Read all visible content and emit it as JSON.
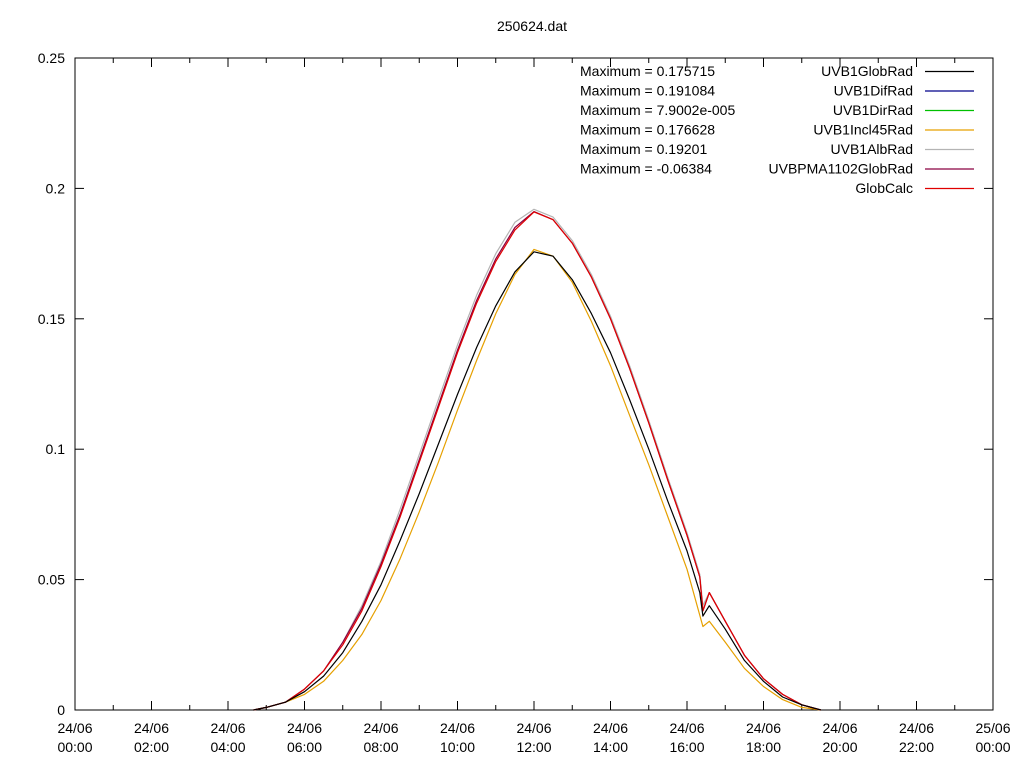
{
  "chart_data": {
    "type": "line",
    "title": "250624.dat",
    "xlabel": "",
    "ylabel": "",
    "xlim": [
      "2024-06-24 00:00",
      "2024-06-25 00:00"
    ],
    "ylim": [
      0,
      0.25
    ],
    "y_ticks": [
      {
        "value": 0,
        "label": "0"
      },
      {
        "value": 0.05,
        "label": "0.05"
      },
      {
        "value": 0.1,
        "label": "0.1"
      },
      {
        "value": 0.15,
        "label": "0.15"
      },
      {
        "value": 0.2,
        "label": "0.2"
      },
      {
        "value": 0.25,
        "label": "0.25"
      }
    ],
    "x_ticks": [
      {
        "time": "2024-06-24 00:00",
        "line1": "24/06",
        "line2": "00:00"
      },
      {
        "time": "2024-06-24 02:00",
        "line1": "24/06",
        "line2": "02:00"
      },
      {
        "time": "2024-06-24 04:00",
        "line1": "24/06",
        "line2": "04:00"
      },
      {
        "time": "2024-06-24 06:00",
        "line1": "24/06",
        "line2": "06:00"
      },
      {
        "time": "2024-06-24 08:00",
        "line1": "24/06",
        "line2": "08:00"
      },
      {
        "time": "2024-06-24 10:00",
        "line1": "24/06",
        "line2": "10:00"
      },
      {
        "time": "2024-06-24 12:00",
        "line1": "24/06",
        "line2": "12:00"
      },
      {
        "time": "2024-06-24 14:00",
        "line1": "24/06",
        "line2": "14:00"
      },
      {
        "time": "2024-06-24 16:00",
        "line1": "24/06",
        "line2": "16:00"
      },
      {
        "time": "2024-06-24 18:00",
        "line1": "24/06",
        "line2": "18:00"
      },
      {
        "time": "2024-06-24 20:00",
        "line1": "24/06",
        "line2": "20:00"
      },
      {
        "time": "2024-06-24 22:00",
        "line1": "24/06",
        "line2": "22:00"
      },
      {
        "time": "2024-06-25 00:00",
        "line1": "25/06",
        "line2": "00:00"
      }
    ],
    "grid": false,
    "legend_position": "top-right",
    "annotations": [
      "Maximum = 0.175715",
      "Maximum = 0.191084",
      "Maximum = 7.9002e-005",
      "Maximum = 0.176628",
      "Maximum = 0.19201",
      "Maximum = -0.06384"
    ],
    "series": [
      {
        "name": "UVB1GlobRad",
        "color": "#000000",
        "points": [
          [
            "2024-06-24 04:40",
            0
          ],
          [
            "2024-06-24 05:00",
            0.001
          ],
          [
            "2024-06-24 05:30",
            0.003
          ],
          [
            "2024-06-24 06:00",
            0.007
          ],
          [
            "2024-06-24 06:30",
            0.013
          ],
          [
            "2024-06-24 07:00",
            0.022
          ],
          [
            "2024-06-24 07:30",
            0.034
          ],
          [
            "2024-06-24 08:00",
            0.048
          ],
          [
            "2024-06-24 08:30",
            0.065
          ],
          [
            "2024-06-24 09:00",
            0.083
          ],
          [
            "2024-06-24 09:30",
            0.102
          ],
          [
            "2024-06-24 10:00",
            0.121
          ],
          [
            "2024-06-24 10:30",
            0.139
          ],
          [
            "2024-06-24 11:00",
            0.155
          ],
          [
            "2024-06-24 11:30",
            0.168
          ],
          [
            "2024-06-24 12:00",
            0.1757
          ],
          [
            "2024-06-24 12:30",
            0.174
          ],
          [
            "2024-06-24 13:00",
            0.165
          ],
          [
            "2024-06-24 13:30",
            0.152
          ],
          [
            "2024-06-24 14:00",
            0.137
          ],
          [
            "2024-06-24 14:30",
            0.119
          ],
          [
            "2024-06-24 15:00",
            0.1
          ],
          [
            "2024-06-24 15:30",
            0.08
          ],
          [
            "2024-06-24 16:00",
            0.061
          ],
          [
            "2024-06-24 16:20",
            0.045
          ],
          [
            "2024-06-24 16:25",
            0.036
          ],
          [
            "2024-06-24 16:35",
            0.04
          ],
          [
            "2024-06-24 17:00",
            0.031
          ],
          [
            "2024-06-24 17:30",
            0.019
          ],
          [
            "2024-06-24 18:00",
            0.011
          ],
          [
            "2024-06-24 18:30",
            0.005
          ],
          [
            "2024-06-24 19:00",
            0.002
          ],
          [
            "2024-06-24 19:30",
            0
          ]
        ]
      },
      {
        "name": "UVB1DifRad",
        "color": "#00008b",
        "points": []
      },
      {
        "name": "UVB1DirRad",
        "color": "#00c000",
        "points": []
      },
      {
        "name": "UVB1Incl45Rad",
        "color": "#e6a000",
        "points": [
          [
            "2024-06-24 04:40",
            0
          ],
          [
            "2024-06-24 05:00",
            0.001
          ],
          [
            "2024-06-24 05:30",
            0.003
          ],
          [
            "2024-06-24 06:00",
            0.006
          ],
          [
            "2024-06-24 06:30",
            0.011
          ],
          [
            "2024-06-24 07:00",
            0.019
          ],
          [
            "2024-06-24 07:30",
            0.029
          ],
          [
            "2024-06-24 08:00",
            0.042
          ],
          [
            "2024-06-24 08:30",
            0.058
          ],
          [
            "2024-06-24 09:00",
            0.076
          ],
          [
            "2024-06-24 09:30",
            0.095
          ],
          [
            "2024-06-24 10:00",
            0.115
          ],
          [
            "2024-06-24 10:30",
            0.134
          ],
          [
            "2024-06-24 11:00",
            0.152
          ],
          [
            "2024-06-24 11:30",
            0.167
          ],
          [
            "2024-06-24 12:00",
            0.1766
          ],
          [
            "2024-06-24 12:30",
            0.174
          ],
          [
            "2024-06-24 13:00",
            0.164
          ],
          [
            "2024-06-24 13:30",
            0.149
          ],
          [
            "2024-06-24 14:00",
            0.132
          ],
          [
            "2024-06-24 14:30",
            0.113
          ],
          [
            "2024-06-24 15:00",
            0.094
          ],
          [
            "2024-06-24 15:30",
            0.074
          ],
          [
            "2024-06-24 16:00",
            0.054
          ],
          [
            "2024-06-24 16:25",
            0.032
          ],
          [
            "2024-06-24 16:35",
            0.034
          ],
          [
            "2024-06-24 17:00",
            0.026
          ],
          [
            "2024-06-24 17:30",
            0.016
          ],
          [
            "2024-06-24 18:00",
            0.009
          ],
          [
            "2024-06-24 18:30",
            0.004
          ],
          [
            "2024-06-24 19:00",
            0.001
          ],
          [
            "2024-06-24 19:30",
            0
          ]
        ]
      },
      {
        "name": "UVB1AlbRad",
        "color": "#b4b4b4",
        "points": [
          [
            "2024-06-24 04:40",
            0
          ],
          [
            "2024-06-24 05:00",
            0.001
          ],
          [
            "2024-06-24 05:30",
            0.003
          ],
          [
            "2024-06-24 06:00",
            0.008
          ],
          [
            "2024-06-24 06:30",
            0.015
          ],
          [
            "2024-06-24 07:00",
            0.026
          ],
          [
            "2024-06-24 07:30",
            0.04
          ],
          [
            "2024-06-24 08:00",
            0.057
          ],
          [
            "2024-06-24 08:30",
            0.077
          ],
          [
            "2024-06-24 09:00",
            0.098
          ],
          [
            "2024-06-24 09:30",
            0.119
          ],
          [
            "2024-06-24 10:00",
            0.14
          ],
          [
            "2024-06-24 10:30",
            0.159
          ],
          [
            "2024-06-24 11:00",
            0.175
          ],
          [
            "2024-06-24 11:30",
            0.187
          ],
          [
            "2024-06-24 12:00",
            0.192
          ],
          [
            "2024-06-24 12:30",
            0.189
          ],
          [
            "2024-06-24 13:00",
            0.18
          ],
          [
            "2024-06-24 13:30",
            0.167
          ],
          [
            "2024-06-24 14:00",
            0.151
          ],
          [
            "2024-06-24 14:30",
            0.132
          ],
          [
            "2024-06-24 15:00",
            0.111
          ],
          [
            "2024-06-24 15:30",
            0.089
          ],
          [
            "2024-06-24 16:00",
            0.068
          ],
          [
            "2024-06-24 16:20",
            0.052
          ],
          [
            "2024-06-24 16:25",
            0.04
          ],
          [
            "2024-06-24 16:35",
            0.045
          ],
          [
            "2024-06-24 17:00",
            0.034
          ],
          [
            "2024-06-24 17:30",
            0.021
          ],
          [
            "2024-06-24 18:00",
            0.012
          ],
          [
            "2024-06-24 18:30",
            0.006
          ],
          [
            "2024-06-24 19:00",
            0.002
          ],
          [
            "2024-06-24 19:30",
            0
          ]
        ]
      },
      {
        "name": "UVBPMA1102GlobRad",
        "color": "#8b0040",
        "points": [
          [
            "2024-06-24 04:40",
            0
          ],
          [
            "2024-06-24 05:00",
            0.001
          ],
          [
            "2024-06-24 05:30",
            0.003
          ],
          [
            "2024-06-24 06:00",
            0.008
          ],
          [
            "2024-06-24 06:30",
            0.015
          ],
          [
            "2024-06-24 07:00",
            0.026
          ],
          [
            "2024-06-24 07:30",
            0.039
          ],
          [
            "2024-06-24 08:00",
            0.056
          ],
          [
            "2024-06-24 08:30",
            0.075
          ],
          [
            "2024-06-24 09:00",
            0.096
          ],
          [
            "2024-06-24 09:30",
            0.117
          ],
          [
            "2024-06-24 10:00",
            0.138
          ],
          [
            "2024-06-24 10:30",
            0.157
          ],
          [
            "2024-06-24 11:00",
            0.173
          ],
          [
            "2024-06-24 11:30",
            0.185
          ],
          [
            "2024-06-24 12:00",
            0.1911
          ],
          [
            "2024-06-24 12:30",
            0.188
          ],
          [
            "2024-06-24 13:00",
            0.179
          ],
          [
            "2024-06-24 13:30",
            0.166
          ],
          [
            "2024-06-24 14:00",
            0.15
          ],
          [
            "2024-06-24 14:30",
            0.131
          ],
          [
            "2024-06-24 15:00",
            0.11
          ],
          [
            "2024-06-24 15:30",
            0.088
          ],
          [
            "2024-06-24 16:00",
            0.067
          ],
          [
            "2024-06-24 16:20",
            0.051
          ],
          [
            "2024-06-24 16:25",
            0.038
          ],
          [
            "2024-06-24 16:35",
            0.045
          ],
          [
            "2024-06-24 17:00",
            0.034
          ],
          [
            "2024-06-24 17:30",
            0.021
          ],
          [
            "2024-06-24 18:00",
            0.012
          ],
          [
            "2024-06-24 18:30",
            0.006
          ],
          [
            "2024-06-24 19:00",
            0.002
          ],
          [
            "2024-06-24 19:30",
            0
          ]
        ]
      },
      {
        "name": "GlobCalc",
        "color": "#e00000",
        "points": [
          [
            "2024-06-24 04:40",
            0
          ],
          [
            "2024-06-24 05:00",
            0.001
          ],
          [
            "2024-06-24 05:30",
            0.003
          ],
          [
            "2024-06-24 06:00",
            0.008
          ],
          [
            "2024-06-24 06:30",
            0.015
          ],
          [
            "2024-06-24 07:00",
            0.025
          ],
          [
            "2024-06-24 07:30",
            0.038
          ],
          [
            "2024-06-24 08:00",
            0.055
          ],
          [
            "2024-06-24 08:30",
            0.074
          ],
          [
            "2024-06-24 09:00",
            0.095
          ],
          [
            "2024-06-24 09:30",
            0.116
          ],
          [
            "2024-06-24 10:00",
            0.137
          ],
          [
            "2024-06-24 10:30",
            0.156
          ],
          [
            "2024-06-24 11:00",
            0.172
          ],
          [
            "2024-06-24 11:30",
            0.184
          ],
          [
            "2024-06-24 12:00",
            0.191
          ],
          [
            "2024-06-24 12:30",
            0.188
          ],
          [
            "2024-06-24 13:00",
            0.179
          ],
          [
            "2024-06-24 13:30",
            0.166
          ],
          [
            "2024-06-24 14:00",
            0.15
          ],
          [
            "2024-06-24 14:30",
            0.131
          ],
          [
            "2024-06-24 15:00",
            0.11
          ],
          [
            "2024-06-24 15:30",
            0.088
          ],
          [
            "2024-06-24 16:00",
            0.067
          ],
          [
            "2024-06-24 16:20",
            0.051
          ],
          [
            "2024-06-24 16:25",
            0.038
          ],
          [
            "2024-06-24 16:35",
            0.045
          ],
          [
            "2024-06-24 17:00",
            0.034
          ],
          [
            "2024-06-24 17:30",
            0.021
          ],
          [
            "2024-06-24 18:00",
            0.012
          ],
          [
            "2024-06-24 18:30",
            0.006
          ],
          [
            "2024-06-24 19:00",
            0.002
          ],
          [
            "2024-06-24 19:30",
            0
          ]
        ]
      }
    ]
  }
}
